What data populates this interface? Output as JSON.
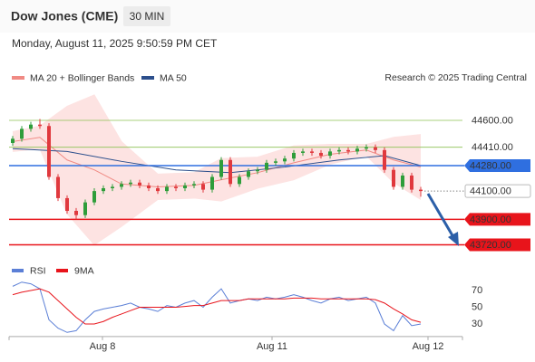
{
  "header": {
    "title": "Dow Jones (CME)",
    "timeframe": "30 MIN",
    "timestamp": "Monday, August 11, 2025 9:50:59 PM CET",
    "source": "Research © 2025 Trading Central"
  },
  "chart_data": [
    {
      "type": "candlestick",
      "open": [
        44440,
        44470,
        44540,
        44570,
        44560,
        44200,
        44050,
        43960,
        43930,
        44020,
        44100,
        44120,
        44130,
        44150,
        44160,
        44140,
        44120,
        44100,
        44130,
        44120,
        44140,
        44150,
        44110,
        44200,
        44320,
        44150,
        44200,
        44240,
        44250,
        44300,
        44310,
        44330,
        44370,
        44380,
        44370,
        44350,
        44380,
        44390,
        44380,
        44400,
        44410,
        44390,
        44250,
        44130,
        44210,
        44110
      ],
      "high": [
        44490,
        44560,
        44590,
        44610,
        44580,
        44220,
        44070,
        43980,
        44040,
        44120,
        44140,
        44150,
        44170,
        44180,
        44180,
        44160,
        44140,
        44150,
        44150,
        44160,
        44170,
        44170,
        44220,
        44340,
        44340,
        44220,
        44260,
        44270,
        44320,
        44330,
        44350,
        44390,
        44400,
        44400,
        44390,
        44400,
        44410,
        44410,
        44420,
        44430,
        44430,
        44410,
        44270,
        44230,
        44230,
        44130
      ],
      "low": [
        44420,
        44450,
        44520,
        44540,
        44180,
        44030,
        43940,
        43900,
        43910,
        44000,
        44080,
        44100,
        44110,
        44130,
        44120,
        44100,
        44080,
        44080,
        44100,
        44100,
        44120,
        44090,
        44090,
        44180,
        44130,
        44130,
        44180,
        44220,
        44230,
        44280,
        44290,
        44310,
        44350,
        44350,
        44330,
        44330,
        44360,
        44360,
        44360,
        44380,
        44370,
        44230,
        44110,
        44110,
        44090,
        44060
      ],
      "close": [
        44470,
        44540,
        44570,
        44560,
        44200,
        44050,
        43960,
        43930,
        44020,
        44100,
        44120,
        44130,
        44150,
        44160,
        44140,
        44120,
        44100,
        44130,
        44120,
        44140,
        44150,
        44110,
        44200,
        44320,
        44150,
        44200,
        44240,
        44250,
        44300,
        44310,
        44330,
        44370,
        44380,
        44370,
        44350,
        44380,
        44390,
        44380,
        44400,
        44410,
        44390,
        44250,
        44130,
        44210,
        44110,
        44100
      ],
      "up_color": "#2e9d3a",
      "down_color": "#e0393e",
      "xlim": [
        -0.4,
        49.6
      ],
      "xticks": [
        {
          "value": 9.9,
          "label": "Aug 8"
        },
        {
          "value": 28.6,
          "label": "Aug 11"
        },
        {
          "value": 45.8,
          "label": "Aug 12"
        }
      ],
      "ylim": [
        43600,
        44800
      ],
      "overlays": [
        {
          "name": "MA 20 + Bollinger Bands",
          "color": "#f08a84",
          "band_color": "#fde3e2",
          "x": [
            0,
            3,
            6,
            9,
            12,
            16,
            20,
            23,
            27,
            31,
            35,
            39,
            42,
            45
          ],
          "upper": [
            44520,
            44560,
            44700,
            44780,
            44450,
            44220,
            44230,
            44330,
            44340,
            44420,
            44430,
            44430,
            44480,
            44500
          ],
          "middle": [
            44450,
            44480,
            44320,
            44250,
            44150,
            44130,
            44140,
            44180,
            44230,
            44300,
            44360,
            44390,
            44320,
            44270
          ],
          "lower": [
            44380,
            44400,
            43940,
            43720,
            43850,
            44040,
            44050,
            44030,
            44120,
            44180,
            44290,
            44350,
            44160,
            44040
          ]
        },
        {
          "name": "MA 50",
          "color": "#2c4f8c",
          "x": [
            0,
            6,
            12,
            18,
            24,
            30,
            36,
            41,
            45
          ],
          "values": [
            44400,
            44380,
            44310,
            44250,
            44230,
            44270,
            44320,
            44350,
            44280
          ]
        }
      ],
      "levels": [
        {
          "value": 44600,
          "label": "44600.00",
          "color": "#8cc152",
          "label_style": "plain"
        },
        {
          "value": 44410,
          "label": "44410.00",
          "color": "#8cc152",
          "label_style": "plain"
        },
        {
          "value": 44280,
          "label": "44280.00",
          "color": "#2f6fe0",
          "label_style": "filled"
        },
        {
          "value": 44100,
          "label": "44100.00",
          "color": "#888888",
          "label_style": "outlined"
        },
        {
          "value": 43900,
          "label": "43900.00",
          "color": "#e8141b",
          "label_style": "filled"
        },
        {
          "value": 43720,
          "label": "43720.00",
          "color": "#e8141b",
          "label_style": "filled"
        }
      ]
    },
    {
      "type": "line",
      "xlim": [
        -0.4,
        49.6
      ],
      "ylim": [
        15,
        85
      ],
      "yticks": [
        70,
        50,
        30
      ],
      "series": [
        {
          "name": "RSI",
          "color": "#5b7fd6",
          "values": [
            75,
            80,
            78,
            72,
            35,
            25,
            20,
            22,
            35,
            45,
            48,
            50,
            52,
            55,
            50,
            48,
            45,
            52,
            50,
            55,
            58,
            50,
            62,
            72,
            55,
            58,
            60,
            58,
            62,
            60,
            62,
            65,
            62,
            58,
            55,
            60,
            62,
            58,
            60,
            62,
            55,
            30,
            22,
            40,
            28,
            30
          ]
        },
        {
          "name": "9MA",
          "color": "#e8141b",
          "values": [
            65,
            68,
            70,
            72,
            68,
            58,
            48,
            38,
            30,
            30,
            33,
            38,
            42,
            46,
            50,
            50,
            50,
            50,
            50,
            51,
            52,
            52,
            55,
            58,
            58,
            58,
            60,
            60,
            60,
            60,
            60,
            61,
            61,
            61,
            60,
            60,
            60,
            60,
            60,
            60,
            59,
            55,
            48,
            42,
            35,
            32
          ]
        }
      ]
    }
  ]
}
